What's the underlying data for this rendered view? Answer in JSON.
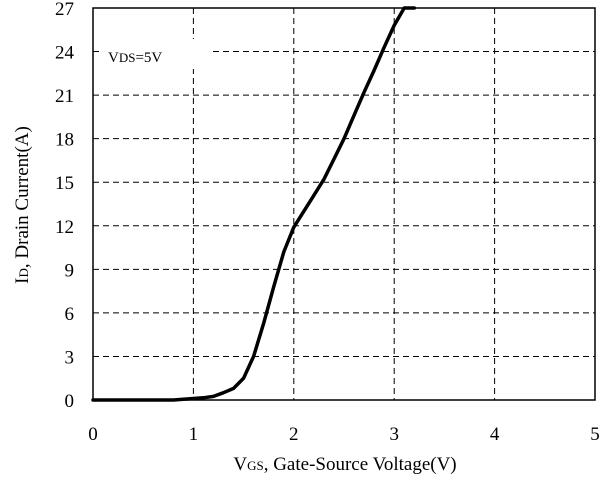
{
  "chart_data": {
    "type": "line",
    "title": "",
    "xlabel": {
      "main": "V",
      "sub": "GS",
      "rest": ", Gate-Source Voltage(V)"
    },
    "ylabel": {
      "main": "I",
      "sub": "D",
      "rest": ", Drain Current(A)"
    },
    "xlim": [
      0,
      5
    ],
    "ylim": [
      0,
      27
    ],
    "xticks": [
      0,
      1,
      2,
      3,
      4,
      5
    ],
    "yticks": [
      0,
      3,
      6,
      9,
      12,
      15,
      18,
      21,
      24,
      27
    ],
    "grid": "dashed",
    "annotation": {
      "main": "V",
      "sub": "DS",
      "rest": "=5V"
    },
    "series": [
      {
        "x": [
          0,
          0.8,
          1.0,
          1.1,
          1.2,
          1.3,
          1.4,
          1.5,
          1.6,
          1.7,
          1.8,
          1.9,
          2.0,
          2.1,
          2.2,
          2.3,
          2.4,
          2.5,
          2.6,
          2.7,
          2.8,
          2.9,
          3.0,
          3.1,
          3.2
        ],
        "y": [
          0,
          0,
          0.1,
          0.15,
          0.25,
          0.5,
          0.8,
          1.5,
          3.0,
          5.3,
          7.8,
          10.2,
          11.9,
          13.0,
          14.1,
          15.2,
          16.6,
          18.0,
          19.6,
          21.2,
          22.7,
          24.3,
          25.8,
          27.0,
          27.0
        ]
      }
    ]
  }
}
